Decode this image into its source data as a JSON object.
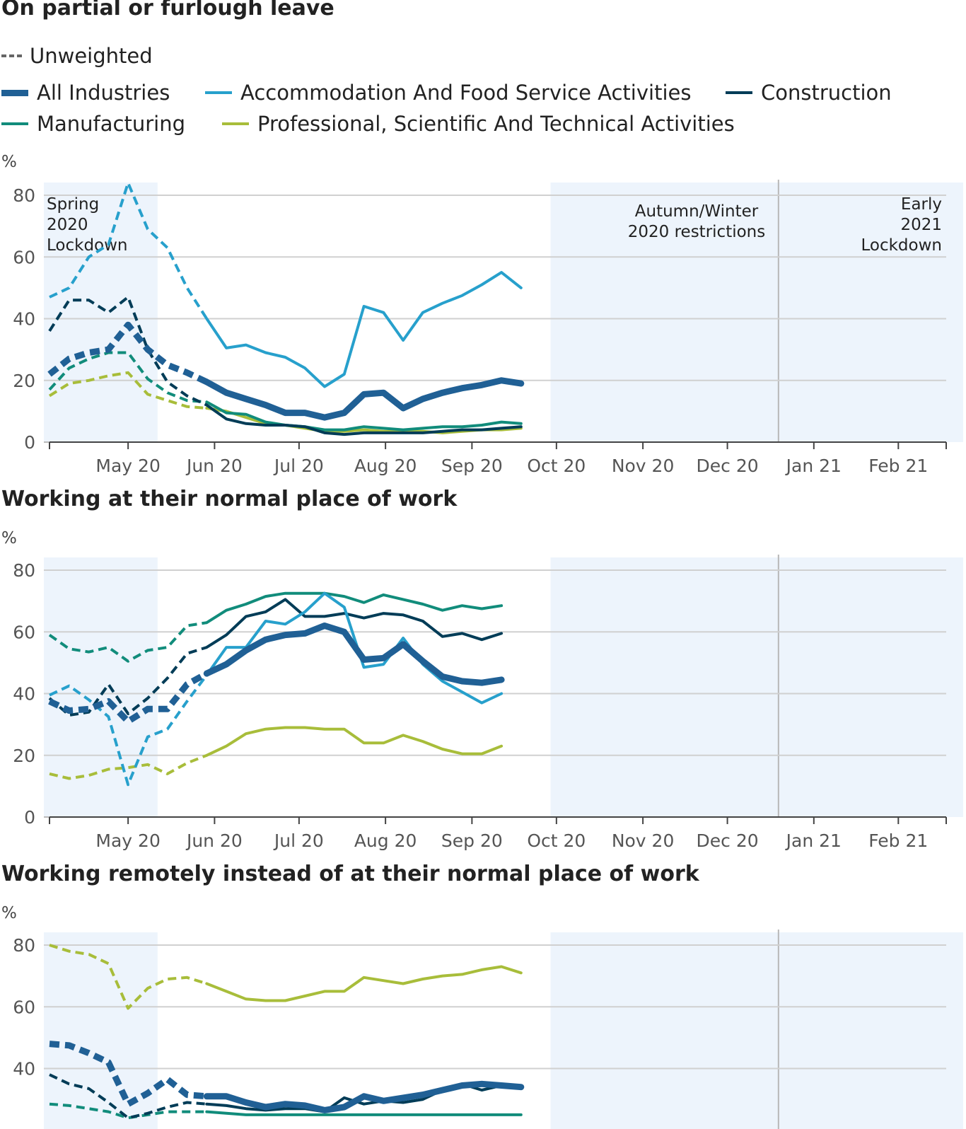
{
  "legend": {
    "unweighted": "Unweighted",
    "items": [
      {
        "name": "All Industries",
        "color": "#206095",
        "width": 9
      },
      {
        "name": "Accommodation And Food Service Activities",
        "color": "#27a0cc",
        "width": 4
      },
      {
        "name": "Construction",
        "color": "#003c57",
        "width": 4
      },
      {
        "name": "Manufacturing",
        "color": "#118c7b",
        "width": 4
      },
      {
        "name": "Professional, Scientific And Technical Activities",
        "color": "#a8bd3a",
        "width": 4
      }
    ]
  },
  "unit": "%",
  "chart_data": [
    {
      "type": "line",
      "title": "On partial or furlough leave",
      "ylabel": "%",
      "ylim": [
        0,
        80
      ],
      "yticks": [
        0,
        20,
        40,
        60,
        80
      ],
      "x_ticks": [
        "May 20",
        "Jun 20",
        "Jul 20",
        "Aug 20",
        "Sep 20",
        "Oct 20",
        "Nov 20",
        "Dec 20",
        "Jan 21",
        "Feb 21"
      ],
      "shaded_periods": [
        {
          "label": "Spring 2020 Lockdown",
          "label_lines": [
            "Spring",
            "2020",
            "Lockdown"
          ],
          "from": 0,
          "to": 5.5
        },
        {
          "label": "Autumn/Winter 2020 restrictions",
          "label_lines": [
            "Autumn/Winter",
            "2020 restrictions"
          ],
          "from": 25.5,
          "to": 37.1
        },
        {
          "label": "Early 2021 Lockdown",
          "label_lines": [
            "Early",
            "2021",
            "Lockdown"
          ],
          "from": 37.1,
          "to": 46.5
        }
      ],
      "unweighted_until": 8,
      "series": [
        {
          "name": "All Industries",
          "values": [
            22,
            27,
            29,
            30,
            38,
            30,
            25,
            22.5,
            19.5,
            16,
            14,
            12,
            9.5,
            9.5,
            8,
            9.5,
            15.5,
            16,
            11,
            14,
            16,
            17.5,
            18.5,
            20,
            19
          ]
        },
        {
          "name": "Accommodation And Food Service Activities",
          "values": [
            47,
            50,
            60,
            64,
            84,
            69,
            63,
            50,
            40,
            30.5,
            31.5,
            29,
            27.5,
            24,
            18,
            22,
            44,
            42,
            33,
            42,
            45,
            47.5,
            51,
            55,
            50
          ]
        },
        {
          "name": "Construction",
          "values": [
            36,
            46,
            46,
            42,
            47,
            30,
            19.5,
            15,
            12,
            7.5,
            6,
            5.5,
            5.5,
            5,
            3,
            2.5,
            3,
            3,
            3,
            3,
            3.5,
            4,
            4,
            4.5,
            5
          ]
        },
        {
          "name": "Manufacturing",
          "values": [
            17,
            24,
            27,
            29,
            29,
            20.5,
            16,
            13.5,
            13,
            9.5,
            9,
            6.5,
            5.5,
            5,
            4,
            4,
            5,
            4.5,
            4,
            4.5,
            5,
            5,
            5.5,
            6.5,
            6
          ]
        },
        {
          "name": "Professional, Scientific And Technical Activities",
          "values": [
            15,
            19,
            20,
            21.5,
            22.5,
            15.5,
            13.5,
            11.5,
            11,
            10,
            8,
            6,
            5.5,
            4.5,
            3.5,
            3.5,
            4,
            3.5,
            3.5,
            3.5,
            3,
            3.5,
            4,
            4,
            4.5
          ]
        }
      ]
    },
    {
      "type": "line",
      "title": "Working at their normal place of work",
      "ylabel": "%",
      "ylim": [
        0,
        80
      ],
      "yticks": [
        0,
        20,
        40,
        60,
        80
      ],
      "x_ticks": [
        "May 20",
        "Jun 20",
        "Jul 20",
        "Aug 20",
        "Sep 20",
        "Oct 20",
        "Nov 20",
        "Dec 20",
        "Jan 21",
        "Feb 21"
      ],
      "shaded_periods": [
        {
          "from": 0,
          "to": 5.5
        },
        {
          "from": 25.5,
          "to": 37.1
        },
        {
          "from": 37.1,
          "to": 46.5
        }
      ],
      "unweighted_until": 8,
      "series": [
        {
          "name": "All Industries",
          "values": [
            37.5,
            34.5,
            35,
            37.5,
            31,
            35,
            35,
            43,
            46.5,
            49.5,
            54,
            57.5,
            59,
            59.5,
            62,
            60,
            51,
            51.5,
            56,
            50.5,
            45.5,
            44,
            43.5,
            44.5
          ]
        },
        {
          "name": "Accommodation And Food Service Activities",
          "values": [
            39.5,
            42.5,
            38,
            32.5,
            10.5,
            26,
            28.5,
            37.5,
            46,
            55,
            55,
            63.5,
            62.5,
            66.5,
            72.5,
            68,
            48.5,
            49.5,
            58,
            49.5,
            44,
            40.5,
            37,
            40
          ]
        },
        {
          "name": "Construction",
          "values": [
            38.5,
            33,
            34,
            43,
            33.5,
            38.5,
            45,
            53,
            55,
            59,
            65,
            66.5,
            70.5,
            65,
            65,
            66,
            64.5,
            66,
            65.5,
            63.5,
            58.5,
            59.5,
            57.5,
            59.5
          ]
        },
        {
          "name": "Manufacturing",
          "values": [
            59,
            54.5,
            53.5,
            55,
            50.5,
            54,
            55,
            62,
            63,
            67,
            69,
            71.5,
            72.5,
            72.5,
            72.5,
            71.5,
            69.5,
            72,
            70.5,
            69,
            67,
            68.5,
            67.5,
            68.5
          ]
        },
        {
          "name": "Professional, Scientific And Technical Activities",
          "values": [
            14,
            12.5,
            13.5,
            15.5,
            16,
            17,
            14,
            17.5,
            20,
            23,
            27,
            28.5,
            29,
            29,
            28.5,
            28.5,
            24,
            24,
            26.5,
            24.5,
            22,
            20.5,
            20.5,
            23
          ]
        }
      ]
    },
    {
      "type": "line",
      "title": "Working remotely instead of at their normal place of work",
      "ylabel": "%",
      "ylim": [
        0,
        80
      ],
      "yticks": [
        40,
        60,
        80
      ],
      "shaded_periods": [
        {
          "from": 0,
          "to": 5.5
        },
        {
          "from": 25.5,
          "to": 37.1
        },
        {
          "from": 37.1,
          "to": 46.5
        }
      ],
      "unweighted_until": 8,
      "series": [
        {
          "name": "All Industries",
          "values": [
            48,
            47.5,
            45,
            42,
            28.5,
            32,
            36.5,
            31.5,
            31,
            31,
            29,
            27.5,
            28.5,
            28,
            26.5,
            27.5,
            31,
            29.5,
            30.5,
            31.5,
            33,
            34.5,
            35,
            34.5,
            34
          ]
        },
        {
          "name": "Construction",
          "values": [
            38,
            35,
            33.5,
            29,
            24,
            25.5,
            27.5,
            29,
            28.5,
            28,
            27,
            26.5,
            27,
            27,
            26,
            30.5,
            28.5,
            29.5,
            29,
            30,
            33,
            35,
            33,
            34.5,
            33.5
          ]
        },
        {
          "name": "Manufacturing",
          "values": [
            28.5,
            28,
            27,
            26,
            24,
            25,
            26,
            26,
            26,
            25.5,
            25,
            25,
            25,
            25,
            25,
            25,
            25,
            25,
            25,
            25,
            25,
            25,
            25,
            25,
            25
          ]
        },
        {
          "name": "Professional, Scientific And Technical Activities",
          "values": [
            80,
            78,
            77,
            74,
            59.5,
            66,
            69,
            69.5,
            67.5,
            65,
            62.5,
            62,
            62,
            63.5,
            65,
            65,
            69.5,
            68.5,
            67.5,
            69,
            70,
            70.5,
            72,
            73,
            71
          ]
        }
      ]
    }
  ]
}
